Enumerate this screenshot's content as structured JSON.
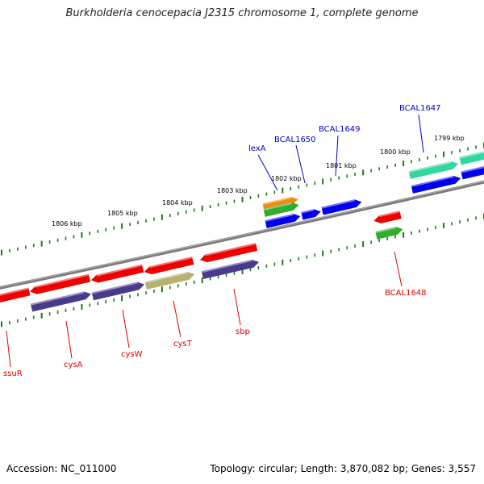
{
  "title": "Burkholderia cenocepacia J2315 chromosome 1, complete genome",
  "footer": {
    "accession": "Accession: NC_011000",
    "topology": "Topology: circular; Length: 3,870,082 bp; Genes: 3,557"
  },
  "kbp_labels": [
    "1806 kbp",
    "1805 kbp",
    "1804 kbp",
    "1803 kbp",
    "1802 kbp",
    "1801 kbp",
    "1800 kbp",
    "1799 kbp"
  ],
  "gene_labels": [
    "ssuR",
    "cysA",
    "cysW",
    "cysT",
    "sbp",
    "BCAL1648",
    "lexA",
    "BCAL1650",
    "BCAL1649",
    "BCAL1647"
  ],
  "colors": {
    "red": "#ee0000",
    "navy": "#4a3a8c",
    "olive": "#b8b070",
    "blue": "#0000ee",
    "orange": "#f08a10",
    "green": "#2fae2f",
    "teal": "#30d8a0",
    "tick": "#1a7a1a",
    "backbone": "#808080",
    "label_red": "#dd0000",
    "label_blue": "#0000cc"
  }
}
